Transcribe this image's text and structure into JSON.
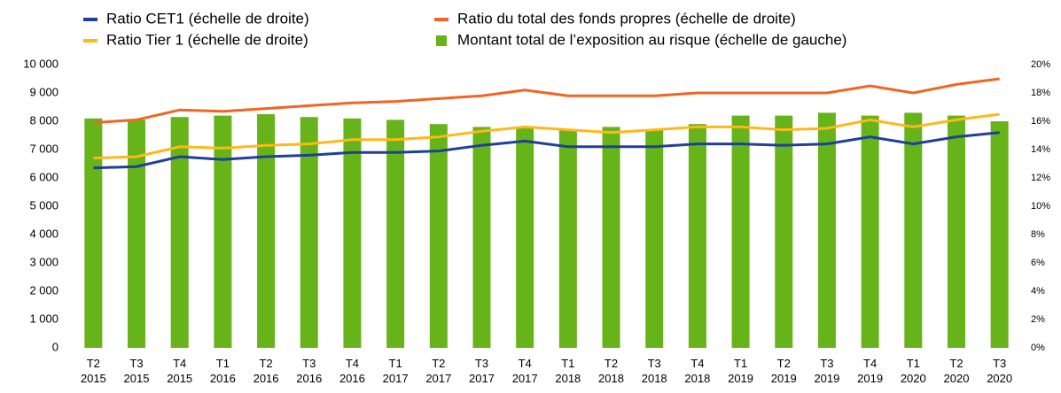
{
  "chart_data": {
    "type": "bar-line",
    "categories": [
      "T2 2015",
      "T3 2015",
      "T4 2015",
      "T1 2016",
      "T2 2016",
      "T3 2016",
      "T4 2016",
      "T1 2017",
      "T2 2017",
      "T3 2017",
      "T4 2017",
      "T1 2018",
      "T2 2018",
      "T3 2018",
      "T4 2018",
      "T1 2019",
      "T2 2019",
      "T3 2019",
      "T4 2019",
      "T1 2020",
      "T2 2020",
      "T3 2020"
    ],
    "series": [
      {
        "name": "Ratio CET1 (échelle de droite)",
        "type": "line",
        "axis": "y2",
        "color": "#1f3f99",
        "values": [
          12.7,
          12.8,
          13.5,
          13.3,
          13.5,
          13.6,
          13.8,
          13.8,
          13.9,
          14.3,
          14.6,
          14.2,
          14.2,
          14.2,
          14.4,
          14.4,
          14.3,
          14.4,
          14.9,
          14.4,
          14.9,
          15.2
        ]
      },
      {
        "name": "Ratio du total des fonds propres (échelle de droite)",
        "type": "line",
        "axis": "y2",
        "color": "#f26522",
        "values": [
          15.9,
          16.1,
          16.8,
          16.7,
          16.9,
          17.1,
          17.3,
          17.4,
          17.6,
          17.8,
          18.2,
          17.8,
          17.8,
          17.8,
          18.0,
          18.0,
          18.0,
          18.0,
          18.5,
          18.0,
          18.6,
          19.0
        ]
      },
      {
        "name": "Ratio Tier 1 (échelle de droite)",
        "type": "line",
        "axis": "y2",
        "color": "#ffb819",
        "values": [
          13.4,
          13.5,
          14.2,
          14.1,
          14.3,
          14.4,
          14.7,
          14.7,
          14.9,
          15.3,
          15.6,
          15.4,
          15.2,
          15.4,
          15.6,
          15.6,
          15.4,
          15.5,
          16.1,
          15.6,
          16.1,
          16.5
        ]
      },
      {
        "name": "Montant total de l’exposition au risque (échelle de gauche)",
        "type": "bar",
        "axis": "y",
        "color": "#66b31a",
        "values": [
          8100,
          8050,
          8150,
          8200,
          8250,
          8150,
          8100,
          8050,
          7900,
          7800,
          7800,
          7700,
          7800,
          7700,
          7900,
          8200,
          8200,
          8300,
          8200,
          8300,
          8200,
          8000
        ]
      }
    ],
    "ylim": [
      0,
      10000
    ],
    "yticks": [
      0,
      {
        "value": 1000,
        "label": "1 000"
      },
      {
        "value": 2000,
        "label": "2 000"
      },
      {
        "value": 3000,
        "label": "3 000"
      },
      {
        "value": 4000,
        "label": "4 000"
      },
      {
        "value": 5000,
        "label": "5 000"
      },
      {
        "value": 6000,
        "label": "6 000"
      },
      {
        "value": 7000,
        "label": "7 000"
      },
      {
        "value": 8000,
        "label": "8 000"
      },
      {
        "value": 9000,
        "label": "9 000"
      },
      {
        "value": 10000,
        "label": "10 000"
      }
    ],
    "y2lim": [
      0,
      20
    ],
    "y2ticks": [
      {
        "value": 0,
        "label": "0%"
      },
      {
        "value": 2,
        "label": "2%"
      },
      {
        "value": 4,
        "label": "4%"
      },
      {
        "value": 6,
        "label": "6%"
      },
      {
        "value": 8,
        "label": "8%"
      },
      {
        "value": 10,
        "label": "10%"
      },
      {
        "value": 12,
        "label": "12%"
      },
      {
        "value": 14,
        "label": "14%"
      },
      {
        "value": 16,
        "label": "16%"
      },
      {
        "value": 18,
        "label": "18%"
      },
      {
        "value": 20,
        "label": "20%"
      }
    ],
    "grid": false
  }
}
